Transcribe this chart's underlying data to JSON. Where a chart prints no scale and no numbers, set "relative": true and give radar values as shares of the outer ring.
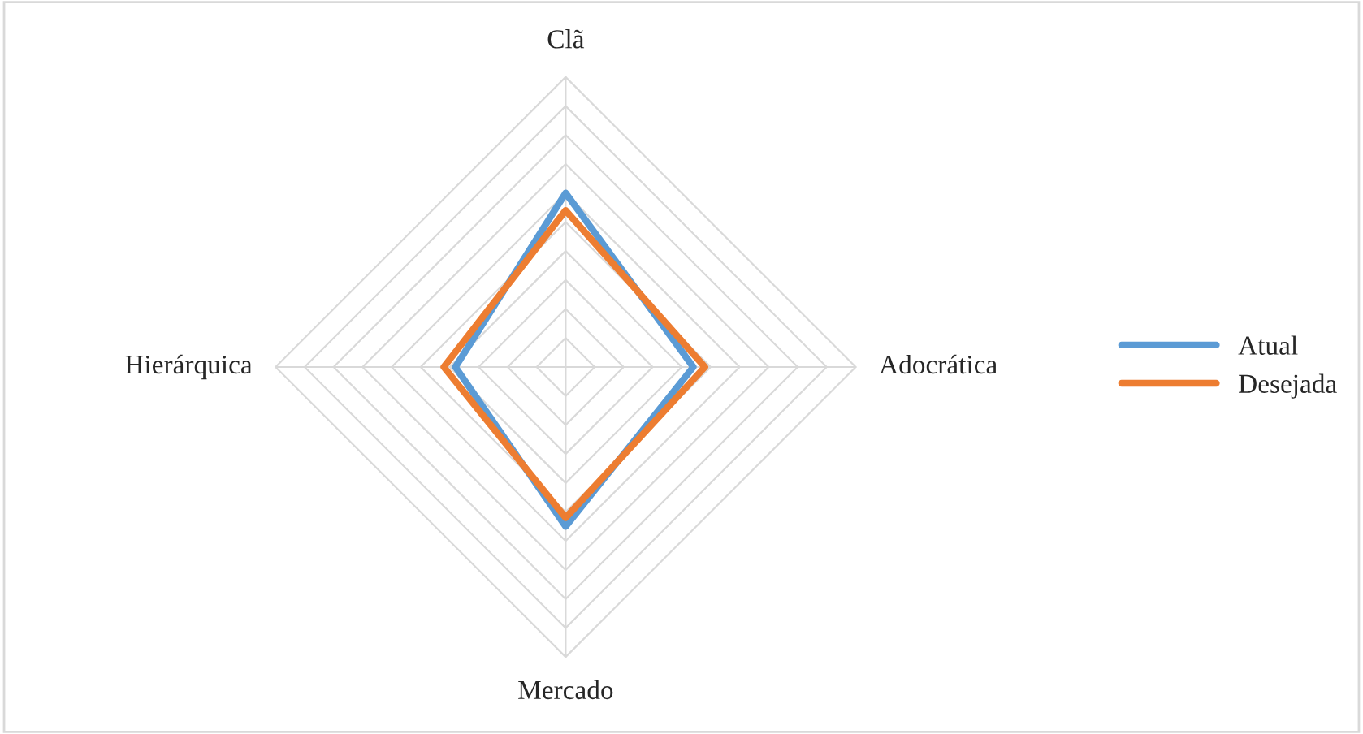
{
  "chart_data": {
    "type": "radar",
    "relative": true,
    "categories": [
      "Clã",
      "Adocrática",
      "Mercado",
      "Hierárquica"
    ],
    "series": [
      {
        "name": "Atual",
        "color": "#5b9bd5",
        "values": [
          0.6,
          0.44,
          0.55,
          0.38
        ]
      },
      {
        "name": "Desejada",
        "color": "#ed7d31",
        "values": [
          0.54,
          0.48,
          0.52,
          0.42
        ]
      }
    ],
    "grid": true,
    "legend": "right",
    "marker": "none",
    "line_style": "solid"
  }
}
